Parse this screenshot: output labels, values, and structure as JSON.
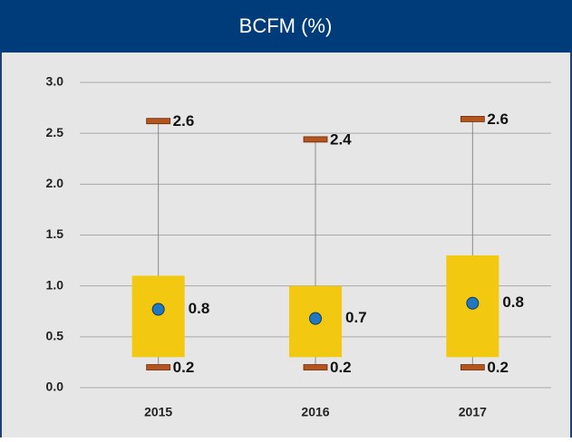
{
  "chart_data": {
    "type": "box",
    "title": "BCFM (%)",
    "categories": [
      "2015",
      "2016",
      "2017"
    ],
    "min": [
      0.2,
      0.2,
      0.2
    ],
    "q1": [
      0.3,
      0.3,
      0.3
    ],
    "q3": [
      1.1,
      1.0,
      1.3
    ],
    "max": [
      2.62,
      2.44,
      2.64
    ],
    "mean": [
      0.77,
      0.68,
      0.83
    ],
    "min_labels": [
      "0.2",
      "0.2",
      "0.2"
    ],
    "max_labels": [
      "2.6",
      "2.4",
      "2.6"
    ],
    "mean_labels": [
      "0.8",
      "0.7",
      "0.8"
    ],
    "ylim": [
      0,
      3
    ],
    "yticks": [
      {
        "value": 0,
        "label": "0.0"
      },
      0.5,
      {
        "value": 1,
        "label": "1.0"
      },
      1.5,
      {
        "value": 2,
        "label": "2.0"
      },
      2.5,
      {
        "value": 3,
        "label": "3.0"
      }
    ],
    "grid": true,
    "box_color": "#f2c811",
    "cap_color": "#b5541c",
    "mean_color": "#1f78c1",
    "whisker_color": "#8a8a8a"
  }
}
